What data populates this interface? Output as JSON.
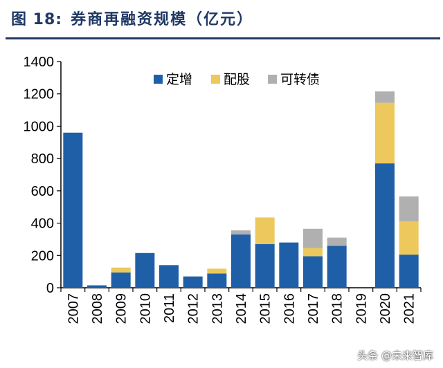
{
  "figure": {
    "label": "图 18:",
    "title": "券商再融资规模（亿元）"
  },
  "watermark": "头条 @未来智库",
  "colors": {
    "title": "#1f3864",
    "定增": "#1f5fa8",
    "配股": "#edc85c",
    "可转债": "#b0b0b0"
  },
  "chart_data": {
    "type": "bar",
    "stacked": true,
    "title": "券商再融资规模（亿元）",
    "categories": [
      "2007",
      "2008",
      "2009",
      "2010",
      "2011",
      "2012",
      "2013",
      "2014",
      "2015",
      "2016",
      "2017",
      "2018",
      "2019",
      "2020",
      "2021"
    ],
    "series": [
      {
        "name": "定增",
        "values": [
          960,
          15,
          95,
          215,
          140,
          70,
          88,
          330,
          270,
          280,
          195,
          260,
          0,
          770,
          205
        ]
      },
      {
        "name": "配股",
        "values": [
          0,
          0,
          30,
          0,
          0,
          0,
          30,
          0,
          165,
          0,
          50,
          0,
          0,
          375,
          205
        ]
      },
      {
        "name": "可转债",
        "values": [
          0,
          0,
          0,
          0,
          0,
          0,
          0,
          25,
          0,
          0,
          120,
          50,
          0,
          70,
          155
        ]
      }
    ],
    "yticks": [
      0,
      200,
      400,
      600,
      800,
      1000,
      1200,
      1400
    ],
    "ylim": [
      0,
      1400
    ],
    "legend_position": "top-center",
    "grid": false
  }
}
